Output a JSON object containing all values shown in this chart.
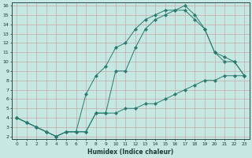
{
  "xlabel": "Humidex (Indice chaleur)",
  "ylabel": "",
  "xlim": [
    -0.5,
    23.5
  ],
  "ylim": [
    1.7,
    16.3
  ],
  "xticks": [
    0,
    1,
    2,
    3,
    4,
    5,
    6,
    7,
    8,
    9,
    10,
    11,
    12,
    13,
    14,
    15,
    16,
    17,
    18,
    19,
    20,
    21,
    22,
    23
  ],
  "yticks": [
    2,
    3,
    4,
    5,
    6,
    7,
    8,
    9,
    10,
    11,
    12,
    13,
    14,
    15,
    16
  ],
  "line_color": "#2a7a6e",
  "bg_color": "#c5e8e3",
  "grid_color": "#c8a8a8",
  "curve1_x": [
    0,
    1,
    2,
    3,
    4,
    5,
    6,
    7,
    8,
    9,
    10,
    11,
    12,
    13,
    14,
    15,
    16,
    17,
    18,
    19,
    20,
    21,
    22,
    23
  ],
  "curve1_y": [
    4.0,
    3.5,
    3.0,
    2.5,
    2.0,
    2.5,
    2.5,
    2.5,
    4.5,
    4.5,
    4.5,
    5.0,
    5.0,
    5.5,
    5.5,
    6.0,
    6.5,
    7.0,
    7.5,
    8.0,
    8.0,
    8.5,
    8.5,
    8.5
  ],
  "curve2_x": [
    0,
    1,
    2,
    3,
    4,
    5,
    6,
    7,
    8,
    9,
    10,
    11,
    12,
    13,
    14,
    15,
    16,
    17,
    18,
    19,
    20,
    21,
    22,
    23
  ],
  "curve2_y": [
    4.0,
    3.5,
    3.0,
    2.5,
    2.0,
    2.5,
    2.5,
    6.5,
    8.5,
    9.5,
    11.5,
    12.0,
    13.5,
    14.5,
    15.0,
    15.5,
    15.5,
    16.0,
    15.0,
    13.5,
    11.0,
    10.0,
    10.0,
    8.5
  ],
  "curve3_x": [
    0,
    1,
    2,
    3,
    4,
    5,
    6,
    7,
    8,
    9,
    10,
    11,
    12,
    13,
    14,
    15,
    16,
    17,
    18,
    19,
    20,
    21,
    22,
    23
  ],
  "curve3_y": [
    4.0,
    3.5,
    3.0,
    2.5,
    2.0,
    2.5,
    2.5,
    2.5,
    4.5,
    4.5,
    9.0,
    9.0,
    11.5,
    13.5,
    14.5,
    15.0,
    15.5,
    15.5,
    14.5,
    13.5,
    11.0,
    10.5,
    10.0,
    8.5
  ]
}
